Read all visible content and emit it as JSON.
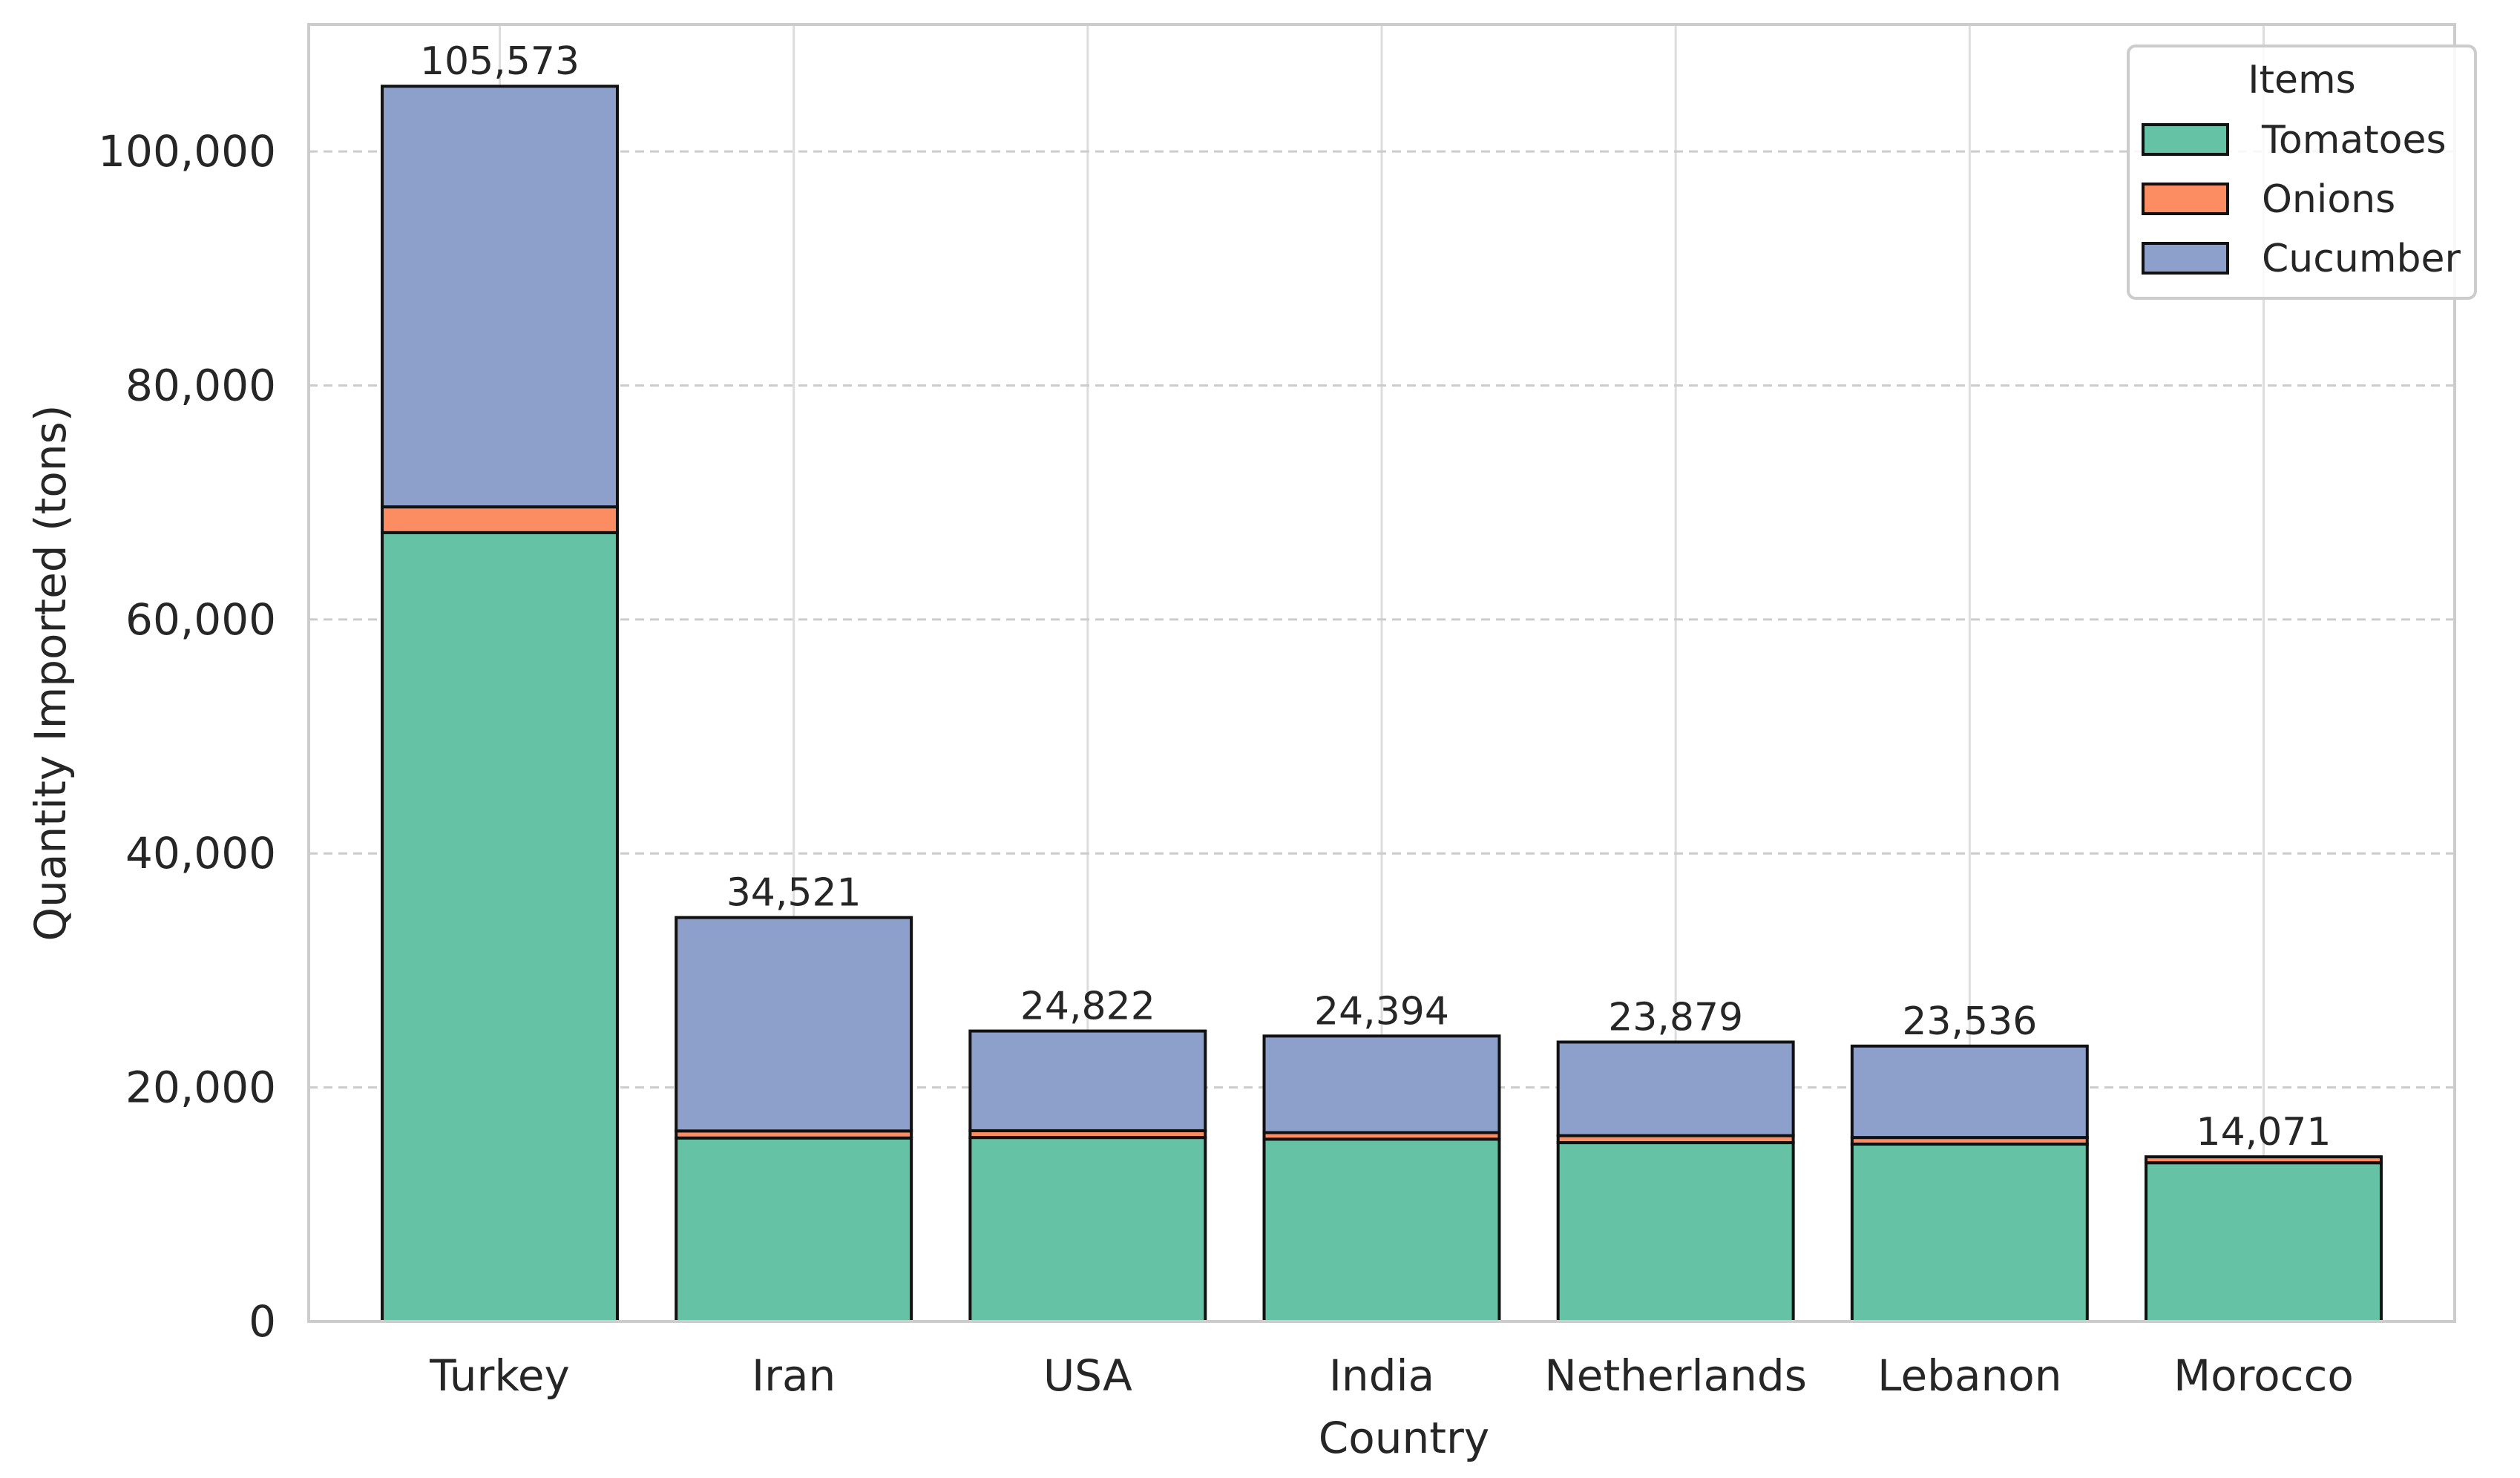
{
  "chart_data": {
    "type": "bar",
    "stacked": true,
    "title": "",
    "xlabel": "Country",
    "ylabel": "Quantity Imported (tons)",
    "ylim": [
      0,
      110850
    ],
    "yticks": [
      0,
      20000,
      40000,
      60000,
      80000,
      100000
    ],
    "ytick_labels": [
      "0",
      "20,000",
      "40,000",
      "60,000",
      "80,000",
      "100,000"
    ],
    "grid": true,
    "categories": [
      "Turkey",
      "Iran",
      "USA",
      "India",
      "Netherlands",
      "Lebanon",
      "Morocco"
    ],
    "series": [
      {
        "name": "Tomatoes",
        "color": "#66c2a5",
        "values": [
          67420,
          15680,
          15720,
          15580,
          15280,
          15160,
          13560
        ]
      },
      {
        "name": "Onions",
        "color": "#fc8d62",
        "values": [
          2200,
          600,
          580,
          560,
          600,
          560,
          511
        ]
      },
      {
        "name": "Cucumber",
        "color": "#8da0cb",
        "values": [
          35953,
          18241,
          8522,
          8254,
          7999,
          7816,
          0
        ]
      }
    ],
    "totals": [
      105573,
      34521,
      24822,
      24394,
      23879,
      23536,
      14071
    ],
    "total_labels": [
      "105,573",
      "34,521",
      "24,822",
      "24,394",
      "23,879",
      "23,536",
      "14,071"
    ],
    "legend": {
      "title": "Items",
      "position": "top-right",
      "entries": [
        "Tomatoes",
        "Onions",
        "Cucumber"
      ]
    }
  }
}
